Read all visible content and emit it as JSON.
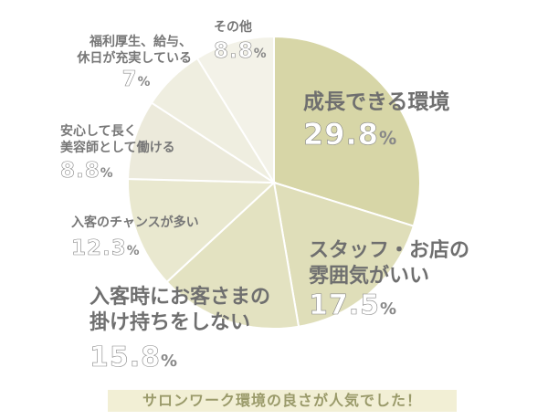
{
  "chart_data": {
    "type": "pie",
    "title": "",
    "slices": [
      {
        "label": "成長できる環境",
        "value": 29.8,
        "display": "29.8",
        "color": "#d7d6a7"
      },
      {
        "label": "スタッフ・お店の雰囲気がいい",
        "value": 17.5,
        "display": "17.5",
        "color": "#dfdeb9"
      },
      {
        "label": "入客時にお客さまの掛け持ちをしない",
        "value": 15.8,
        "display": "15.8",
        "color": "#e3e2c1"
      },
      {
        "label": "入客のチャンスが多い",
        "value": 12.3,
        "display": "12.3",
        "color": "#e9e8cf"
      },
      {
        "label": "安心して長く美容師として働ける",
        "value": 8.8,
        "display": "8.8",
        "color": "#eceadb"
      },
      {
        "label": "福利厚生、給与、休日が充実している",
        "value": 7,
        "display": "7",
        "color": "#efeee0"
      },
      {
        "label": "その他",
        "value": 8.8,
        "display": "8.8",
        "color": "#f3f2e8"
      }
    ],
    "unit": "%",
    "start_angle_deg": 0,
    "direction": "clockwise"
  },
  "labels": [
    {
      "lines": [
        "成長できる環境"
      ],
      "pct": "29.8"
    },
    {
      "lines": [
        "スタッフ・お店の",
        "雰囲気がいい"
      ],
      "pct": "17.5"
    },
    {
      "lines": [
        "入客時にお客さまの",
        "掛け持ちをしない"
      ],
      "pct": "15.8"
    },
    {
      "lines": [
        "入客のチャンスが多い"
      ],
      "pct": "12.3"
    },
    {
      "lines": [
        "安心して長く",
        "美容師として働ける"
      ],
      "pct": "8.8"
    },
    {
      "lines": [
        "福利厚生、給与、",
        "休日が充実している"
      ],
      "pct": "7"
    },
    {
      "lines": [
        "その他"
      ],
      "pct": "8.8"
    }
  ],
  "unit_label": "%",
  "caption": "サロンワーク環境の良さが人気でした！"
}
